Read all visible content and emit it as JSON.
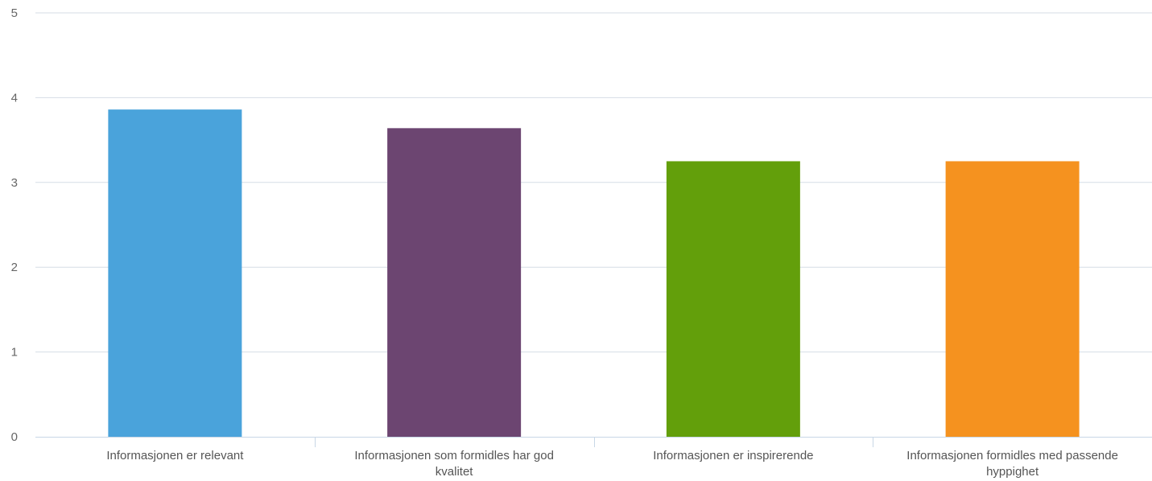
{
  "chart_data": {
    "type": "bar",
    "categories": [
      [
        "Informasjonen er relevant"
      ],
      [
        "Informasjonen som formidles har god",
        "kvalitet"
      ],
      [
        "Informasjonen er inspirerende"
      ],
      [
        "Informasjonen formidles med passende",
        "hyppighet"
      ]
    ],
    "values": [
      3.86,
      3.64,
      3.25,
      3.25
    ],
    "colors": [
      "#4aa3db",
      "#6c4571",
      "#639f0b",
      "#f5921f"
    ],
    "ylim": [
      0,
      5
    ],
    "yticks": [
      "0",
      "1",
      "2",
      "3",
      "4",
      "5"
    ],
    "grid": true,
    "grid_color": "#d6dde6",
    "axis_color": "#c8d7e6",
    "title": "",
    "xlabel": "",
    "ylabel": ""
  }
}
